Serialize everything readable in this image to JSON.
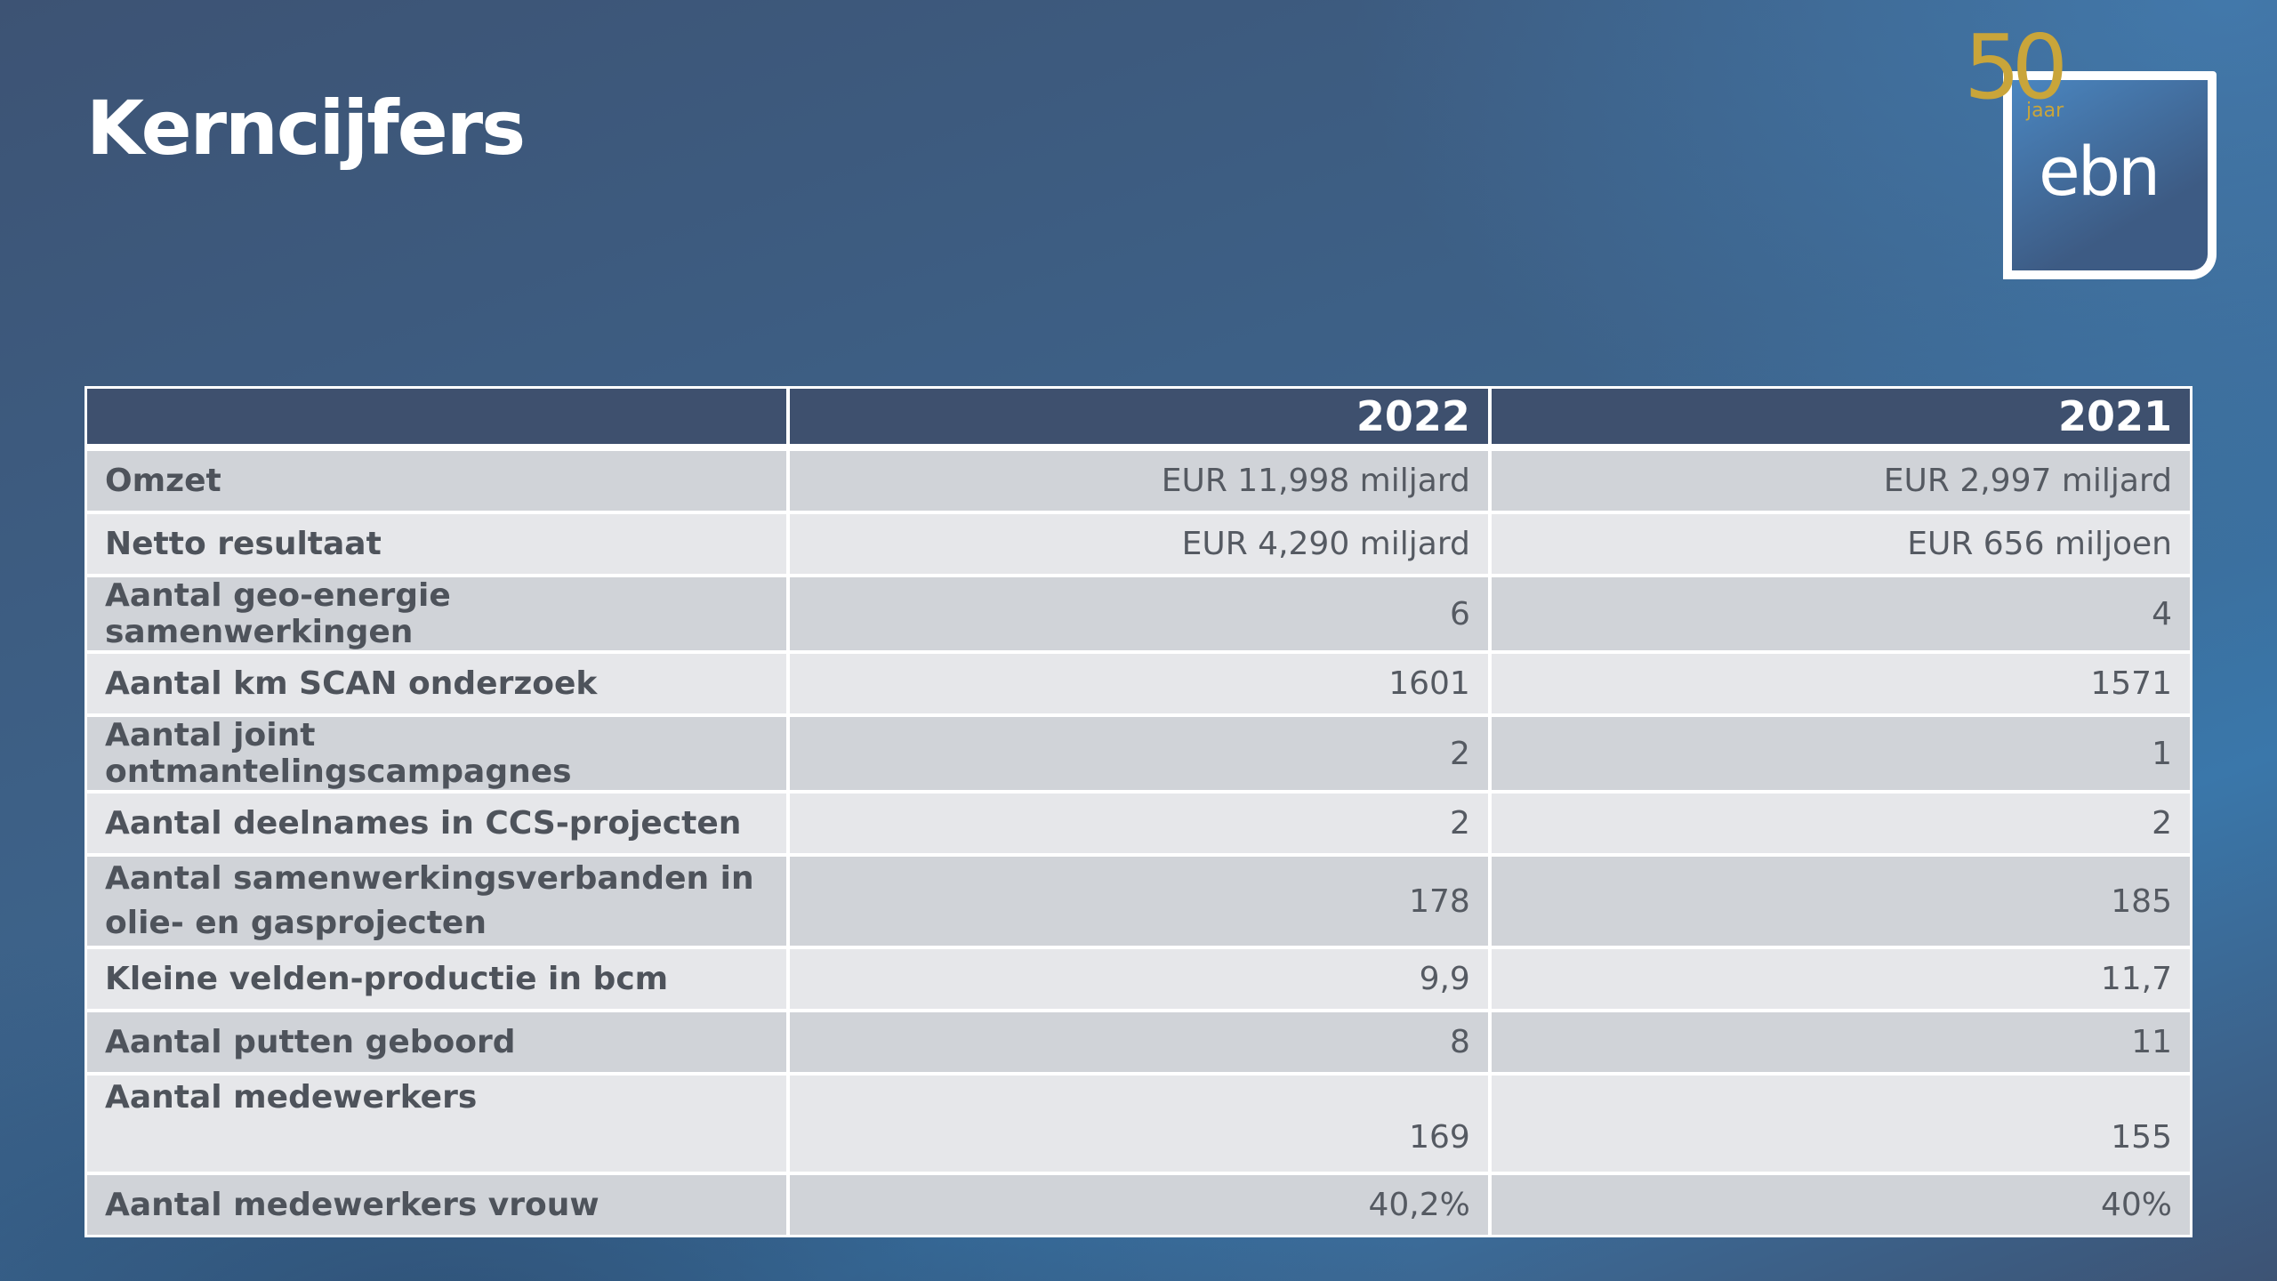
{
  "page": {
    "title": "Kerncijfers"
  },
  "logo": {
    "anniversary_number": "50",
    "anniversary_word": "jaar",
    "brand": "ebn",
    "colors": {
      "gold": "#c9a53a",
      "frame": "#ffffff"
    }
  },
  "table": {
    "headers": [
      "",
      "2022",
      "2021"
    ],
    "rows": [
      {
        "label": "Omzet",
        "v2022": "EUR 11,998 miljard",
        "v2021": "EUR 2,997 miljard"
      },
      {
        "label": "Netto resultaat",
        "v2022": "EUR 4,290 miljard",
        "v2021": "EUR 656 miljoen"
      },
      {
        "label": "Aantal geo-energie samenwerkingen",
        "v2022": "6",
        "v2021": "4"
      },
      {
        "label": "Aantal km SCAN onderzoek",
        "v2022": "1601",
        "v2021": "1571"
      },
      {
        "label": "Aantal joint ontmantelingscampagnes",
        "v2022": "2",
        "v2021": "1"
      },
      {
        "label": "Aantal deelnames in CCS-projecten",
        "v2022": "2",
        "v2021": "2"
      },
      {
        "label": "Aantal samenwerkingsverbanden in olie- en gasprojecten",
        "v2022": "178",
        "v2021": "185"
      },
      {
        "label": "Kleine velden-productie in bcm",
        "v2022": "9,9",
        "v2021": "11,7"
      },
      {
        "label": "Aantal putten geboord",
        "v2022": "8",
        "v2021": "11"
      },
      {
        "label": "Aantal medewerkers",
        "v2022": "169",
        "v2021": "155"
      },
      {
        "label": "Aantal medewerkers vrouw",
        "v2022": "40,2%",
        "v2021": "40%"
      }
    ]
  },
  "colors": {
    "header_bg": "#3e506e",
    "row_dark": "#d0d3d8",
    "row_light": "#e6e7ea"
  }
}
